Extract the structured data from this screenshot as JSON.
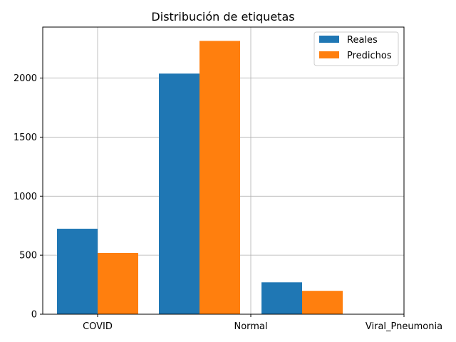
{
  "chart_data": {
    "type": "bar",
    "title": "Distribución de etiquetas",
    "xlabel": "",
    "ylabel": "",
    "categories": [
      "COVID",
      "Normal",
      "Viral_Pneumonia"
    ],
    "series": [
      {
        "name": "Reales",
        "values": [
          724,
          2038,
          270
        ],
        "color": "#1f77b4"
      },
      {
        "name": "Predichos",
        "values": [
          519,
          2315,
          198
        ],
        "color": "#ff7f0e"
      }
    ],
    "yticks": [
      0,
      500,
      1000,
      1500,
      2000
    ],
    "ylim": [
      0,
      2432
    ],
    "grid": true,
    "legend_position": "top-right"
  }
}
